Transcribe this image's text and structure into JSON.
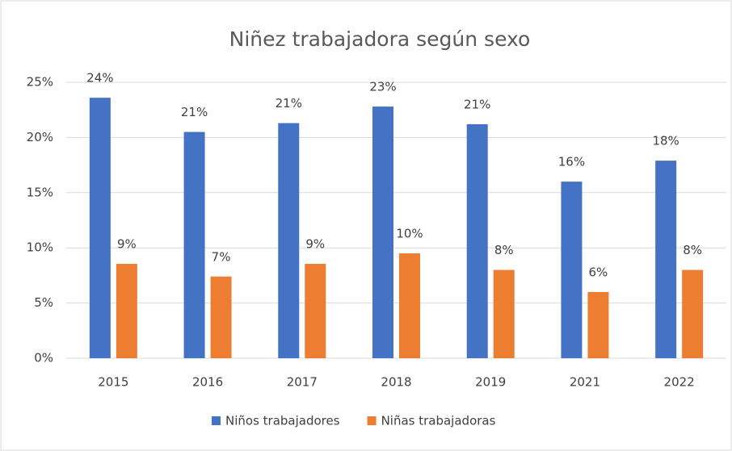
{
  "chart_data": {
    "type": "bar",
    "title": "Niñez trabajadora según sexo",
    "categories": [
      "2015",
      "2016",
      "2017",
      "2018",
      "2019",
      "2021",
      "2022"
    ],
    "series": [
      {
        "name": "Niños trabajadores",
        "color": "#4472c4",
        "values": [
          23.6,
          20.5,
          21.3,
          22.8,
          21.2,
          16.0,
          17.9
        ],
        "value_labels": [
          "24%",
          "21%",
          "21%",
          "23%",
          "21%",
          "16%",
          "18%"
        ]
      },
      {
        "name": "Niñas trabajadoras",
        "color": "#ed7d31",
        "values": [
          8.55,
          7.4,
          8.55,
          9.5,
          8.0,
          6.0,
          8.0
        ],
        "value_labels": [
          "9%",
          "7%",
          "9%",
          "10%",
          "8%",
          "6%",
          "8%"
        ]
      }
    ],
    "ylim": [
      0,
      25
    ],
    "yticks": [
      {
        "value": 0,
        "label": "0%"
      },
      {
        "value": 5,
        "label": "5%"
      },
      {
        "value": 10,
        "label": "10%"
      },
      {
        "value": 15,
        "label": "15%"
      },
      {
        "value": 20,
        "label": "20%"
      },
      {
        "value": 25,
        "label": "25%"
      }
    ],
    "grid": true,
    "legend": "bottom"
  }
}
